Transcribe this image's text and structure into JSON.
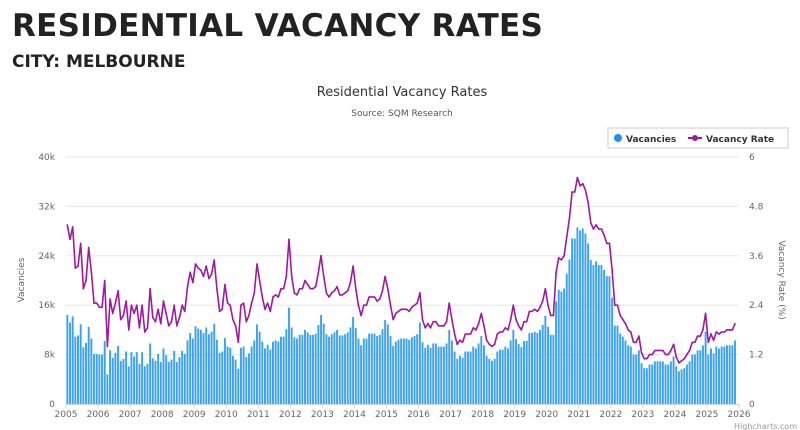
{
  "header": {
    "title": "RESIDENTIAL VACANCY RATES",
    "subtitle": "CITY: MELBOURNE"
  },
  "credits": "Highcharts.com",
  "chart_data": {
    "type": "bar+line",
    "title": "Residential Vacancy Rates",
    "subtitle": "Source: SQM Research",
    "legend_placement": "top-right",
    "grid": true,
    "x_start": "2005-01",
    "x_frequency": "monthly",
    "x_ticks": [
      "2005",
      "2006",
      "2007",
      "2008",
      "2009",
      "2010",
      "2011",
      "2012",
      "2013",
      "2014",
      "2015",
      "2016",
      "2017",
      "2018",
      "2019",
      "2020",
      "2021",
      "2022",
      "2023",
      "2024",
      "2025",
      "2026"
    ],
    "y_left": {
      "label": "Vacancies",
      "range": [
        0,
        40000
      ],
      "ticks": [
        "0",
        "8k",
        "16k",
        "24k",
        "32k",
        "40k"
      ]
    },
    "y_right": {
      "label": "Vacancy Rate (%)",
      "range": [
        0,
        6
      ],
      "ticks": [
        "0",
        "1.2",
        "2.4",
        "3.6",
        "4.8",
        "6"
      ]
    },
    "series": [
      {
        "name": "Vacancies",
        "type": "column",
        "color": "#3ba1f2",
        "values": [
          14400,
          13200,
          14200,
          10900,
          11100,
          12900,
          9200,
          9900,
          12500,
          10600,
          8100,
          8100,
          8000,
          8000,
          10200,
          4800,
          8700,
          7500,
          8300,
          9400,
          7000,
          7300,
          8500,
          6100,
          8400,
          7700,
          8400,
          6500,
          8400,
          6100,
          6500,
          9800,
          7400,
          7000,
          8100,
          6800,
          9000,
          7900,
          6800,
          7200,
          8600,
          6800,
          7600,
          8600,
          8100,
          10300,
          11500,
          10600,
          12600,
          12200,
          12000,
          11500,
          12400,
          11300,
          11700,
          13000,
          10400,
          8300,
          8500,
          10700,
          9300,
          9100,
          7800,
          7200,
          5700,
          9100,
          9300,
          7600,
          8200,
          9300,
          10300,
          12900,
          11700,
          10100,
          9000,
          9600,
          8800,
          10100,
          10300,
          10100,
          10900,
          10900,
          12100,
          15600,
          12400,
          10800,
          10600,
          11200,
          11200,
          12000,
          11600,
          11200,
          11200,
          11400,
          12800,
          14400,
          13000,
          11300,
          10900,
          11300,
          11600,
          12000,
          11100,
          11100,
          11300,
          11600,
          12400,
          14100,
          12300,
          10600,
          9500,
          10600,
          10600,
          11400,
          11400,
          11400,
          11000,
          11200,
          12100,
          13600,
          12900,
          11000,
          9400,
          10100,
          10400,
          10600,
          10600,
          10600,
          10400,
          10800,
          11000,
          11300,
          13200,
          10000,
          9100,
          9600,
          9100,
          9800,
          9800,
          9300,
          9300,
          9300,
          9800,
          12000,
          10300,
          8500,
          7300,
          7800,
          7500,
          8500,
          8500,
          8500,
          9300,
          9000,
          9800,
          11000,
          9500,
          7800,
          7300,
          7000,
          7300,
          8500,
          8800,
          8800,
          9300,
          9000,
          10300,
          12000,
          10500,
          9700,
          9200,
          10200,
          10200,
          11500,
          11500,
          11700,
          11500,
          12000,
          12800,
          14300,
          12500,
          11200,
          11200,
          16600,
          18500,
          18200,
          18700,
          21100,
          23400,
          26800,
          26800,
          28600,
          28100,
          28400,
          27600,
          26000,
          23300,
          22500,
          23100,
          22500,
          22500,
          21700,
          20700,
          20700,
          17200,
          12700,
          12700,
          11400,
          10900,
          10300,
          9500,
          9300,
          8000,
          8000,
          8700,
          6600,
          5800,
          5800,
          6400,
          6400,
          6900,
          6900,
          6900,
          6900,
          6400,
          6400,
          6900,
          7700,
          6100,
          5300,
          5600,
          5800,
          6400,
          6900,
          8000,
          8000,
          8700,
          8700,
          9500,
          11700,
          8000,
          9000,
          8200,
          9300,
          9000,
          9300,
          9300,
          9500,
          9500,
          9500,
          10300
        ]
      },
      {
        "name": "Vacancy Rate",
        "type": "line",
        "color": "#a0189f",
        "values": [
          4.35,
          4.0,
          4.3,
          3.3,
          3.35,
          3.9,
          2.8,
          3.0,
          3.8,
          3.2,
          2.45,
          2.45,
          2.35,
          2.35,
          3.0,
          1.4,
          2.55,
          2.2,
          2.45,
          2.75,
          2.05,
          2.15,
          2.5,
          1.8,
          2.4,
          2.2,
          2.4,
          1.85,
          2.4,
          1.75,
          1.85,
          2.8,
          2.1,
          2.0,
          2.3,
          1.95,
          2.5,
          2.2,
          1.9,
          2.0,
          2.4,
          1.9,
          2.1,
          2.4,
          2.25,
          2.85,
          3.2,
          2.95,
          3.4,
          3.3,
          3.25,
          3.1,
          3.35,
          3.05,
          3.15,
          3.5,
          2.8,
          2.25,
          2.3,
          2.9,
          2.45,
          2.4,
          2.05,
          1.9,
          1.5,
          2.4,
          2.45,
          2.0,
          2.15,
          2.45,
          2.7,
          3.4,
          3.0,
          2.6,
          2.3,
          2.45,
          2.25,
          2.6,
          2.65,
          2.6,
          2.8,
          2.8,
          3.1,
          4.0,
          3.1,
          2.7,
          2.65,
          2.8,
          2.8,
          3.0,
          2.9,
          2.8,
          2.8,
          2.85,
          3.2,
          3.6,
          3.1,
          2.7,
          2.6,
          2.7,
          2.75,
          2.85,
          2.65,
          2.65,
          2.7,
          2.75,
          2.95,
          3.35,
          2.8,
          2.4,
          2.15,
          2.4,
          2.4,
          2.6,
          2.6,
          2.6,
          2.5,
          2.55,
          2.75,
          3.1,
          2.8,
          2.4,
          2.05,
          2.2,
          2.25,
          2.3,
          2.3,
          2.3,
          2.25,
          2.35,
          2.4,
          2.45,
          2.7,
          2.05,
          1.85,
          1.95,
          1.85,
          2.0,
          2.0,
          1.9,
          1.9,
          1.9,
          2.0,
          2.45,
          2.05,
          1.7,
          1.45,
          1.55,
          1.5,
          1.7,
          1.7,
          1.7,
          1.85,
          1.8,
          1.95,
          2.2,
          1.9,
          1.55,
          1.45,
          1.4,
          1.45,
          1.7,
          1.75,
          1.75,
          1.85,
          1.8,
          2.05,
          2.4,
          2.05,
          1.9,
          1.8,
          2.0,
          2.0,
          2.25,
          2.25,
          2.3,
          2.25,
          2.35,
          2.5,
          2.8,
          2.4,
          2.15,
          2.15,
          3.2,
          3.55,
          3.5,
          3.6,
          4.05,
          4.5,
          5.15,
          5.15,
          5.5,
          5.3,
          5.35,
          5.2,
          4.9,
          4.4,
          4.25,
          4.35,
          4.25,
          4.25,
          4.1,
          3.9,
          3.9,
          3.25,
          2.4,
          2.4,
          2.15,
          2.05,
          1.95,
          1.8,
          1.75,
          1.5,
          1.5,
          1.65,
          1.25,
          1.1,
          1.1,
          1.2,
          1.2,
          1.3,
          1.3,
          1.3,
          1.3,
          1.2,
          1.2,
          1.3,
          1.45,
          1.15,
          1.0,
          1.05,
          1.1,
          1.2,
          1.3,
          1.5,
          1.5,
          1.65,
          1.65,
          1.8,
          2.2,
          1.5,
          1.7,
          1.55,
          1.75,
          1.7,
          1.75,
          1.75,
          1.8,
          1.8,
          1.8,
          1.95
        ]
      }
    ]
  }
}
